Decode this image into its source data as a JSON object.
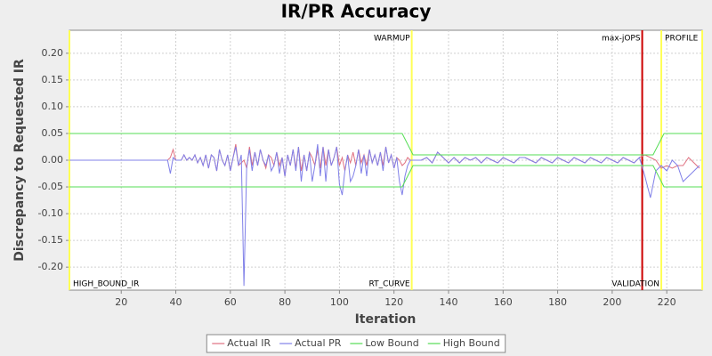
{
  "chart_data": {
    "type": "line",
    "title": "IR/PR Accuracy",
    "x_label": "Iteration",
    "y_label": "Discrepancy to Requested IR",
    "xlim": [
      1,
      233
    ],
    "ylim": [
      -0.243,
      0.243
    ],
    "xticks": [
      20,
      40,
      60,
      80,
      100,
      120,
      140,
      160,
      180,
      200,
      220
    ],
    "yticks": [
      {
        "value": -0.2,
        "label": "-0.20"
      },
      {
        "value": -0.15,
        "label": "-0.15"
      },
      {
        "value": -0.1,
        "label": "-0.10"
      },
      {
        "value": -0.05,
        "label": "-0.05"
      },
      {
        "value": 0,
        "label": "0.00"
      },
      {
        "value": 0.05,
        "label": "0.05"
      },
      {
        "value": 0.1,
        "label": "0.10"
      },
      {
        "value": 0.15,
        "label": "0.15"
      },
      {
        "value": 0.2,
        "label": "0.20"
      }
    ],
    "grid": true,
    "legend": "bottom",
    "markers": [
      {
        "value": 1,
        "color": "#ffff55",
        "bottom_label": "HIGH_BOUND_IR"
      },
      {
        "value": 126.5,
        "color": "#ffff55",
        "top_label": "WARMUP",
        "bottom_label": "RT_CURVE"
      },
      {
        "value": 211,
        "color": "#cc0000",
        "top_label": "max-jOPS"
      },
      {
        "value": 218,
        "color": "#ffff55",
        "top_label": "PROFILE",
        "bottom_label": "VALIDATION"
      },
      {
        "value": 233,
        "color": "#ffff55"
      }
    ],
    "series": [
      {
        "name": "Actual IR",
        "color": "#e07080",
        "x": [
          1,
          37,
          38,
          39,
          40,
          41,
          42,
          43,
          44,
          45,
          46,
          47,
          48,
          49,
          50,
          51,
          52,
          53,
          54,
          55,
          56,
          57,
          58,
          59,
          60,
          61,
          62,
          63,
          64,
          65,
          66,
          67,
          68,
          69,
          70,
          71,
          72,
          73,
          74,
          75,
          76,
          77,
          78,
          79,
          80,
          81,
          82,
          83,
          84,
          85,
          86,
          87,
          88,
          89,
          90,
          91,
          92,
          93,
          94,
          95,
          96,
          97,
          98,
          99,
          100,
          101,
          102,
          103,
          104,
          105,
          106,
          107,
          108,
          109,
          110,
          111,
          112,
          113,
          114,
          115,
          116,
          117,
          118,
          119,
          120,
          121,
          122,
          123,
          124,
          125,
          126,
          128,
          130,
          132,
          134,
          136,
          138,
          140,
          142,
          144,
          146,
          148,
          150,
          152,
          154,
          156,
          158,
          160,
          162,
          164,
          166,
          168,
          170,
          172,
          174,
          176,
          178,
          180,
          182,
          184,
          186,
          188,
          190,
          192,
          194,
          196,
          198,
          200,
          202,
          204,
          206,
          208,
          210,
          212,
          214,
          216,
          218,
          220,
          222,
          224,
          226,
          228,
          230,
          232
        ],
        "values": [
          0,
          0,
          0.005,
          0.02,
          0,
          0,
          0,
          0.01,
          0,
          0.005,
          0,
          0.01,
          -0.005,
          0.005,
          -0.01,
          0.01,
          -0.015,
          0.01,
          0.005,
          -0.02,
          0.02,
          0,
          -0.01,
          0.01,
          -0.02,
          0.005,
          0.03,
          -0.01,
          -0.005,
          0,
          -0.015,
          0.025,
          -0.01,
          0.015,
          -0.01,
          0.02,
          0,
          -0.015,
          0.01,
          0.005,
          -0.01,
          0.015,
          -0.01,
          0.005,
          -0.03,
          0.01,
          -0.01,
          0.02,
          -0.015,
          0.025,
          -0.02,
          0.01,
          -0.02,
          0.015,
          0.005,
          -0.01,
          0.02,
          -0.015,
          0.025,
          -0.01,
          0.02,
          -0.01,
          0.005,
          0.025,
          -0.01,
          0.005,
          -0.02,
          0.01,
          -0.005,
          0.015,
          -0.01,
          0.02,
          -0.005,
          0.01,
          -0.01,
          0.02,
          -0.005,
          0.01,
          -0.01,
          0.015,
          -0.01,
          0.025,
          -0.005,
          0.01,
          -0.015,
          0.005,
          0,
          -0.01,
          -0.005,
          0.005,
          0,
          0,
          0,
          0.005,
          -0.005,
          0.015,
          0.005,
          -0.005,
          0.005,
          -0.005,
          0.005,
          0,
          0.005,
          -0.005,
          0.005,
          0,
          -0.005,
          0.005,
          0,
          -0.005,
          0.005,
          0.005,
          0,
          -0.005,
          0.005,
          0,
          -0.005,
          0.005,
          0,
          -0.005,
          0.005,
          0,
          -0.005,
          0.005,
          0,
          -0.005,
          0.005,
          0,
          -0.005,
          0.005,
          0,
          -0.005,
          0.005,
          0.01,
          0.005,
          0,
          -0.015,
          -0.01,
          -0.015,
          -0.01,
          -0.01,
          0.005,
          -0.005,
          -0.015
        ]
      },
      {
        "name": "Actual PR",
        "color": "#8080e8",
        "x": [
          1,
          37,
          38,
          39,
          40,
          41,
          42,
          43,
          44,
          45,
          46,
          47,
          48,
          49,
          50,
          51,
          52,
          53,
          54,
          55,
          56,
          57,
          58,
          59,
          60,
          61,
          62,
          63,
          64,
          65,
          66,
          67,
          68,
          69,
          70,
          71,
          72,
          73,
          74,
          75,
          76,
          77,
          78,
          79,
          80,
          81,
          82,
          83,
          84,
          85,
          86,
          87,
          88,
          89,
          90,
          91,
          92,
          93,
          94,
          95,
          96,
          97,
          98,
          99,
          100,
          101,
          102,
          103,
          104,
          105,
          106,
          107,
          108,
          109,
          110,
          111,
          112,
          113,
          114,
          115,
          116,
          117,
          118,
          119,
          120,
          121,
          122,
          123,
          124,
          125,
          126,
          128,
          130,
          132,
          134,
          136,
          138,
          140,
          142,
          144,
          146,
          148,
          150,
          152,
          154,
          156,
          158,
          160,
          162,
          164,
          166,
          168,
          170,
          172,
          174,
          176,
          178,
          180,
          182,
          184,
          186,
          188,
          190,
          192,
          194,
          196,
          198,
          200,
          202,
          204,
          206,
          208,
          210,
          212,
          214,
          216,
          218,
          220,
          222,
          224,
          226,
          228,
          230,
          232
        ],
        "values": [
          0,
          0,
          -0.025,
          0.005,
          0,
          0,
          0,
          0.01,
          0,
          0.005,
          0,
          0.01,
          -0.005,
          0.005,
          -0.01,
          0.01,
          -0.015,
          0.01,
          0.005,
          -0.02,
          0.02,
          0,
          -0.01,
          0.01,
          -0.02,
          0.005,
          0.025,
          -0.01,
          0.01,
          -0.235,
          -0.01,
          0.02,
          -0.02,
          0.015,
          -0.01,
          0.02,
          0,
          -0.01,
          0.01,
          -0.02,
          -0.01,
          0.015,
          -0.025,
          0.005,
          -0.03,
          0.01,
          -0.01,
          0.02,
          -0.02,
          0.025,
          -0.04,
          0.01,
          -0.02,
          0.015,
          -0.04,
          -0.01,
          0.03,
          -0.03,
          0.025,
          -0.04,
          0.02,
          -0.01,
          0.005,
          0.025,
          -0.045,
          -0.065,
          -0.02,
          0.01,
          -0.04,
          -0.03,
          -0.01,
          0.02,
          -0.025,
          0.01,
          -0.03,
          0.02,
          -0.005,
          0.01,
          -0.01,
          0.015,
          -0.02,
          0.025,
          -0.005,
          0.01,
          -0.015,
          0.005,
          -0.04,
          -0.065,
          -0.03,
          -0.01,
          0,
          0,
          0,
          0.005,
          -0.005,
          0.015,
          0.005,
          -0.005,
          0.005,
          -0.005,
          0.005,
          0,
          0.005,
          -0.005,
          0.005,
          0,
          -0.005,
          0.005,
          0,
          -0.005,
          0.005,
          0.005,
          0,
          -0.005,
          0.005,
          0,
          -0.005,
          0.005,
          0,
          -0.005,
          0.005,
          0,
          -0.005,
          0.005,
          0,
          -0.005,
          0.005,
          0,
          -0.005,
          0.005,
          0,
          -0.005,
          0.005,
          -0.03,
          -0.07,
          -0.02,
          -0.01,
          -0.02,
          0,
          -0.01,
          -0.04,
          -0.03,
          -0.02,
          -0.01
        ]
      },
      {
        "name": "Low Bound",
        "color": "#55dd55",
        "x": [
          1,
          123,
          127,
          215,
          219,
          233
        ],
        "values": [
          -0.05,
          -0.05,
          -0.01,
          -0.01,
          -0.05,
          -0.05
        ]
      },
      {
        "name": "High Bound",
        "color": "#55dd55",
        "x": [
          1,
          123,
          127,
          215,
          219,
          233
        ],
        "values": [
          0.05,
          0.05,
          0.01,
          0.01,
          0.05,
          0.05
        ]
      }
    ]
  }
}
